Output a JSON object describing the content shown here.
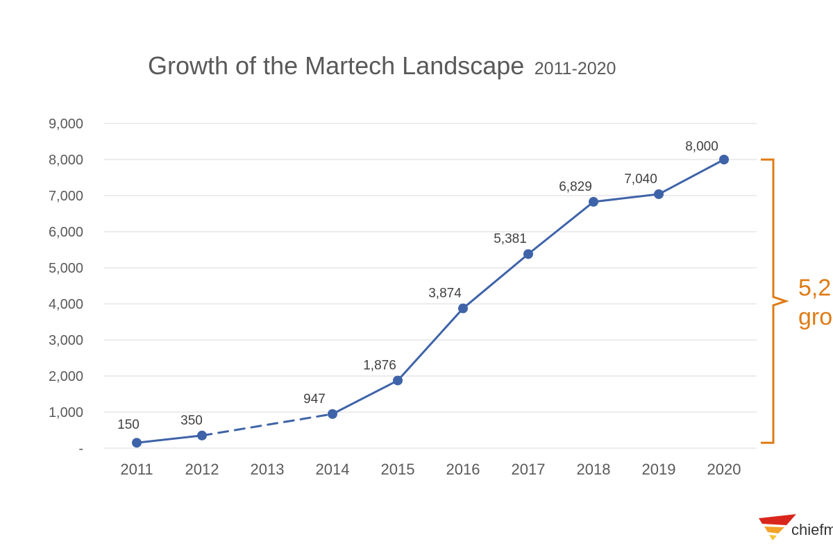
{
  "chart_data": {
    "type": "line",
    "title": "Growth of the Martech Landscape",
    "subtitle": "2011-2020",
    "xlabel": "",
    "ylabel": "",
    "categories": [
      "2011",
      "2012",
      "2013",
      "2014",
      "2015",
      "2016",
      "2017",
      "2018",
      "2019",
      "2020"
    ],
    "series": [
      {
        "values": [
          150,
          350,
          null,
          947,
          1876,
          3874,
          5381,
          6829,
          7040,
          8000
        ],
        "data_labels": [
          "150",
          "350",
          "",
          "947",
          "1,876",
          "3,874",
          "5,381",
          "6,829",
          "7,040",
          "8,000"
        ],
        "dashed_segment": [
          "2012",
          "2014"
        ]
      }
    ],
    "ylim": [
      0,
      9000
    ],
    "yticks": [
      0,
      1000,
      2000,
      3000,
      4000,
      5000,
      6000,
      7000,
      8000,
      9000
    ],
    "ytick_labels": [
      "-",
      "1,000",
      "2,000",
      "3,000",
      "4,000",
      "5,000",
      "6,000",
      "7,000",
      "8,000",
      "9,000"
    ],
    "grid": true,
    "line_color": "#3e63a8",
    "grid_color": "#d9d9d9",
    "annotation": {
      "lines": [
        "5,2",
        "gro"
      ],
      "color": "#e07b15",
      "range": [
        150,
        8000
      ]
    }
  },
  "logo": {
    "text": "chiefm"
  }
}
